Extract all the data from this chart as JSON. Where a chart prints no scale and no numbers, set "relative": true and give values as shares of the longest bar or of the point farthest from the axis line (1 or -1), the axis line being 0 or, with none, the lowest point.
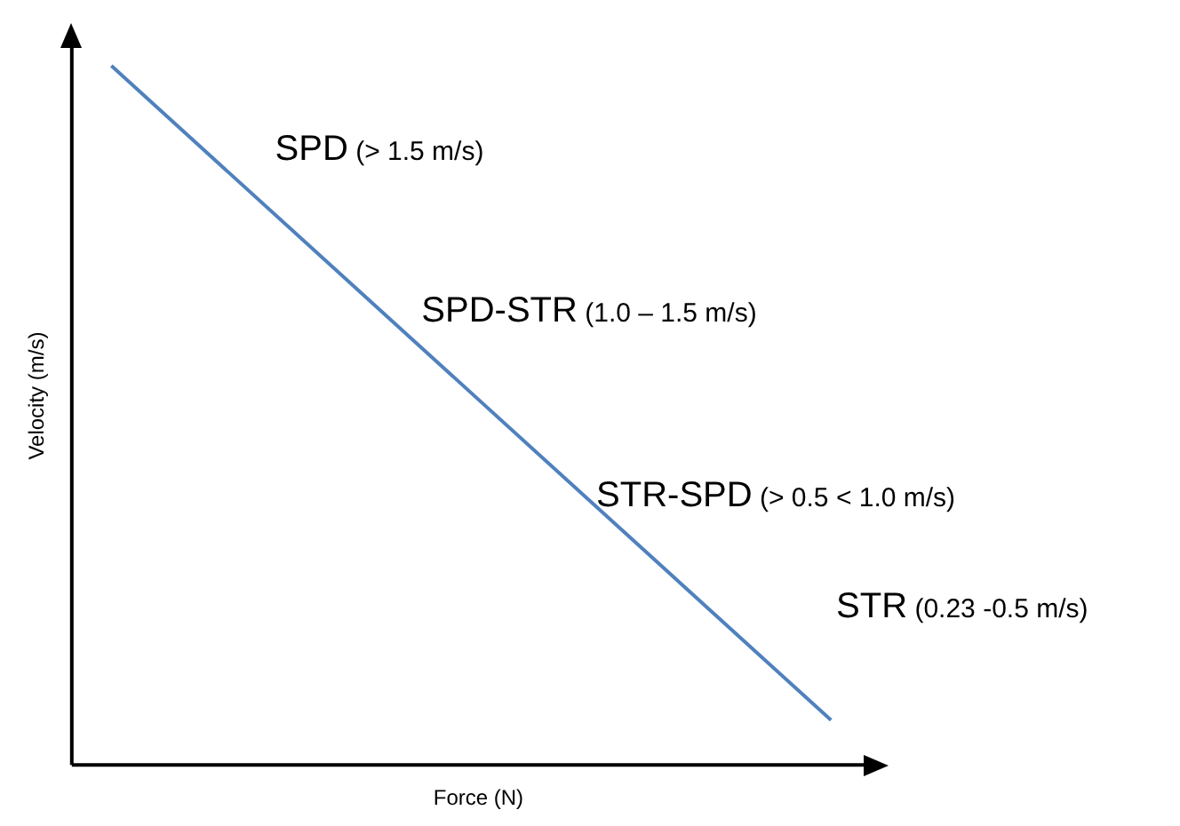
{
  "chart_data": {
    "type": "line",
    "relative": true,
    "xlabel": "Force (N)",
    "ylabel": "Velocity (m/s)",
    "categories": [
      null,
      null
    ],
    "series": [
      {
        "color": "#4f81bd",
        "values": [
          1,
          0.064
        ]
      }
    ],
    "annotations": [
      "SPD (> 1.5 m/s)",
      "SPD-STR (1.0 – 1.5 m/s)",
      "STR-SPD (> 0.5 < 1.0 m/s)",
      "STR (0.23 -0.5 m/s)"
    ],
    "grid": false,
    "legend": false,
    "marker": "none",
    "line_style": "solid"
  }
}
